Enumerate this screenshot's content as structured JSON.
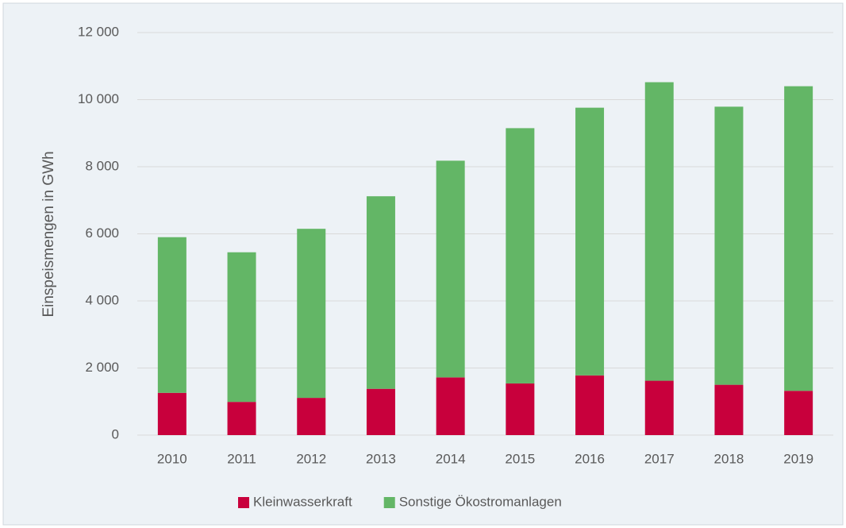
{
  "chart_data": {
    "type": "bar",
    "stacked": true,
    "ylabel": "Einspeismengen in GWh",
    "categories": [
      "2010",
      "2011",
      "2012",
      "2013",
      "2014",
      "2015",
      "2016",
      "2017",
      "2018",
      "2019"
    ],
    "series": [
      {
        "name": "Kleinwasserkraft",
        "color": "#c8003c",
        "values": [
          1260,
          990,
          1110,
          1380,
          1720,
          1540,
          1780,
          1620,
          1500,
          1320
        ]
      },
      {
        "name": "Sonstige Ökostromanlagen",
        "color": "#63b666",
        "values": [
          4640,
          4460,
          5040,
          5740,
          6460,
          7610,
          7980,
          8900,
          8290,
          9080
        ]
      }
    ],
    "ylim": [
      0,
      12000
    ],
    "yticks": [
      0,
      {
        "value": 2000,
        "label": "2 000"
      },
      {
        "value": 4000,
        "label": "4 000"
      },
      {
        "value": 6000,
        "label": "6 000"
      },
      {
        "value": 8000,
        "label": "8 000"
      },
      {
        "value": 10000,
        "label": "10 000"
      },
      {
        "value": 12000,
        "label": "12 000"
      }
    ],
    "grid": true,
    "legend": "bottom"
  }
}
